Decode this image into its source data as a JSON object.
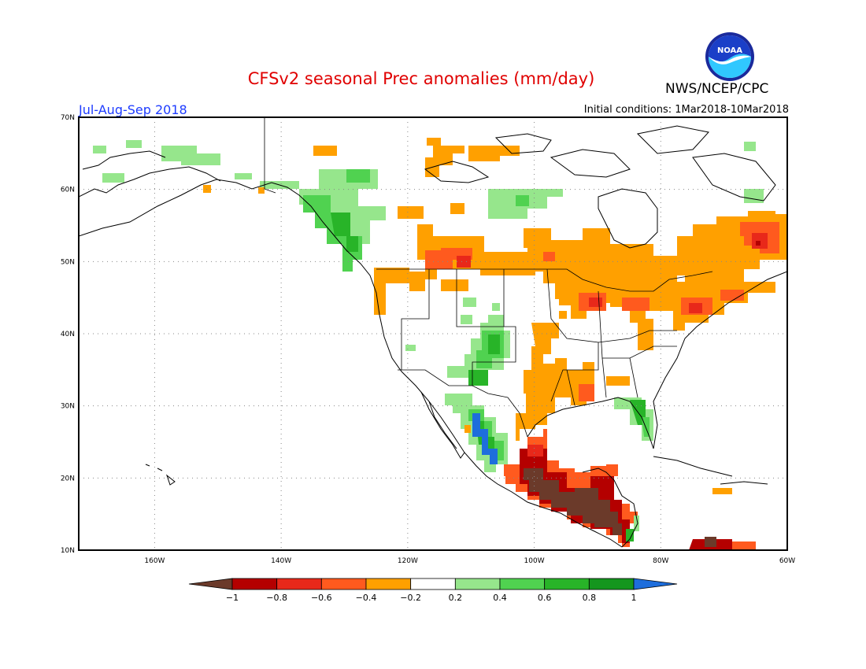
{
  "title": "CFSv2 seasonal Prec anomalies (mm/day)",
  "agency": "NWS/NCEP/CPC",
  "logo_text": "NOAA",
  "season": "Jul-Aug-Sep 2018",
  "initial_conditions": "Initial conditions: 1Mar2018-10Mar2018",
  "map": {
    "lon_range": [
      -172,
      -60
    ],
    "lat_range": [
      10,
      70
    ],
    "lat_ticks": [
      {
        "v": 70,
        "label": "70N"
      },
      {
        "v": 60,
        "label": "60N"
      },
      {
        "v": 50,
        "label": "50N"
      },
      {
        "v": 40,
        "label": "40N"
      },
      {
        "v": 30,
        "label": "30N"
      },
      {
        "v": 20,
        "label": "20N"
      },
      {
        "v": 10,
        "label": "10N"
      }
    ],
    "lon_ticks": [
      {
        "v": -160,
        "label": "160W"
      },
      {
        "v": -140,
        "label": "140W"
      },
      {
        "v": -120,
        "label": "120W"
      },
      {
        "v": -100,
        "label": "100W"
      },
      {
        "v": -80,
        "label": "80W"
      },
      {
        "v": -60,
        "label": "60W"
      }
    ],
    "gridlines": "dotted"
  },
  "colorbar": {
    "labels": [
      "-1",
      "-0.8",
      "-0.6",
      "-0.4",
      "-0.2",
      "0.2",
      "0.4",
      "0.6",
      "0.8",
      "1"
    ],
    "colors": [
      "#6b3a2a",
      "#b40000",
      "#e8281a",
      "#ff5a1e",
      "#ffa000",
      "#ffffff",
      "#96e68c",
      "#50d250",
      "#28b428",
      "#14961e",
      "#1e6edc"
    ]
  },
  "anomaly_regions": [
    {
      "region": "Alaska coast / Gulf of Alaska",
      "bin": "0.2 to 0.4",
      "color": "#96e68c"
    },
    {
      "region": "Pacific NW coast (BC)",
      "bin": "0.4 to 0.6",
      "color": "#50d250"
    },
    {
      "region": "Northern Rockies / Pacific NW US",
      "bin": "-0.4 to -0.2",
      "color": "#ffa000"
    },
    {
      "region": "Southern Prairies",
      "bin": "-0.6 to -0.4",
      "color": "#ff5a1e"
    },
    {
      "region": "Southern Canada / Great Lakes / Quebec",
      "bin": "-0.4 to -0.2",
      "color": "#ffa000"
    },
    {
      "region": "Labrador",
      "bin": "-0.8 to -0.6",
      "color": "#e8281a"
    },
    {
      "region": "Colorado / New Mexico",
      "bin": "0.4 to 0.8",
      "color": "#28b428"
    },
    {
      "region": "Western Mexico (Sinaloa)",
      "bin": "0.8 to 1",
      "color": "#1e6edc"
    },
    {
      "region": "Florida",
      "bin": "0.4 to 0.8",
      "color": "#28b428"
    },
    {
      "region": "Southern Plains / Texas",
      "bin": "-0.4 to -0.2",
      "color": "#ffa000"
    },
    {
      "region": "Southern Mexico / Central America",
      "bin": "< -1",
      "color": "#6b3a2a"
    }
  ]
}
